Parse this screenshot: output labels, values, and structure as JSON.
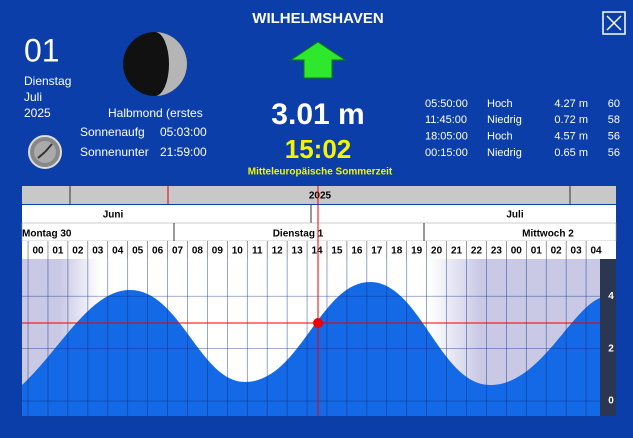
{
  "header": {
    "title": "WILHELMSHAVEN"
  },
  "date": {
    "day": "01",
    "weekday": "Dienstag",
    "month": "Juli",
    "year": "2025"
  },
  "moon": {
    "phase": "Halbmond (erstes"
  },
  "sun": {
    "rise_label": "Sonnenaufg",
    "rise": "05:03:00",
    "set_label": "Sonnenunter",
    "set": "21:59:00"
  },
  "current": {
    "height": "3.01 m",
    "time": "15:02",
    "zone": "Mitteleuropäische Sommerzeit"
  },
  "tides": {
    "rows": [
      [
        "05:50:00",
        "Hoch",
        "4.27 m",
        "60"
      ],
      [
        "11:45:00",
        "Niedrig",
        "0.72 m",
        "58"
      ],
      [
        "18:05:00",
        "Hoch",
        "4.57 m",
        "56"
      ],
      [
        "00:15:00",
        "Niedrig",
        "0.65 m",
        "56"
      ]
    ]
  },
  "timeline": {
    "year": "2025",
    "months": [
      "Juni",
      "Juli"
    ],
    "days": [
      "Montag 30",
      "Dienstag 1",
      "Mittwoch 2"
    ],
    "hours": [
      "00",
      "01",
      "02",
      "03",
      "04",
      "05",
      "06",
      "07",
      "08",
      "09",
      "10",
      "11",
      "12",
      "13",
      "14",
      "15",
      "16",
      "17",
      "18",
      "19",
      "20",
      "21",
      "22",
      "23",
      "00",
      "01",
      "02",
      "03",
      "04"
    ]
  },
  "chart": {
    "ylim": [
      0,
      4.85
    ],
    "yticks": [
      0,
      2,
      4
    ]
  }
}
